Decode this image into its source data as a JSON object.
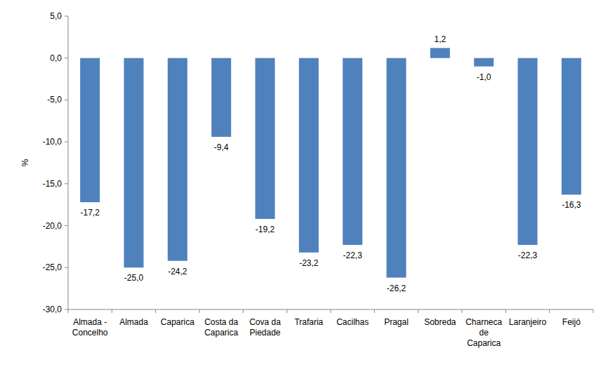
{
  "chart_data": {
    "type": "bar",
    "y_label": "%",
    "categories": [
      "Almada - Concelho",
      "Almada",
      "Caparica",
      "Costa da Caparica",
      "Cova da Piedade",
      "Trafaria",
      "Cacilhas",
      "Pragal",
      "Sobreda",
      "Charneca de Caparica",
      "Laranjeiro",
      "Feijó"
    ],
    "values": [
      -17.2,
      -25.0,
      -24.2,
      -9.4,
      -19.2,
      -23.2,
      -22.3,
      -26.2,
      1.2,
      -1.0,
      -22.3,
      -16.3
    ],
    "value_labels": [
      "-17,2",
      "-25,0",
      "-24,2",
      "-9,4",
      "-19,2",
      "-23,2",
      "-22,3",
      "-26,2",
      "1,2",
      "-1,0",
      "-22,3",
      "-16,3"
    ],
    "color": "#4f81bd",
    "ylim": [
      -30,
      5
    ],
    "yticks": [
      {
        "value": -30,
        "label": "-30,0"
      },
      {
        "value": -25,
        "label": "-25,0"
      },
      {
        "value": -20,
        "label": "-20,0"
      },
      {
        "value": -15,
        "label": "-15,0"
      },
      {
        "value": -10,
        "label": "-10,0"
      },
      {
        "value": -5,
        "label": "-5,0"
      },
      {
        "value": 0,
        "label": "0,0"
      },
      {
        "value": 5,
        "label": "5,0"
      }
    ],
    "grid": false,
    "data_labels": true
  }
}
